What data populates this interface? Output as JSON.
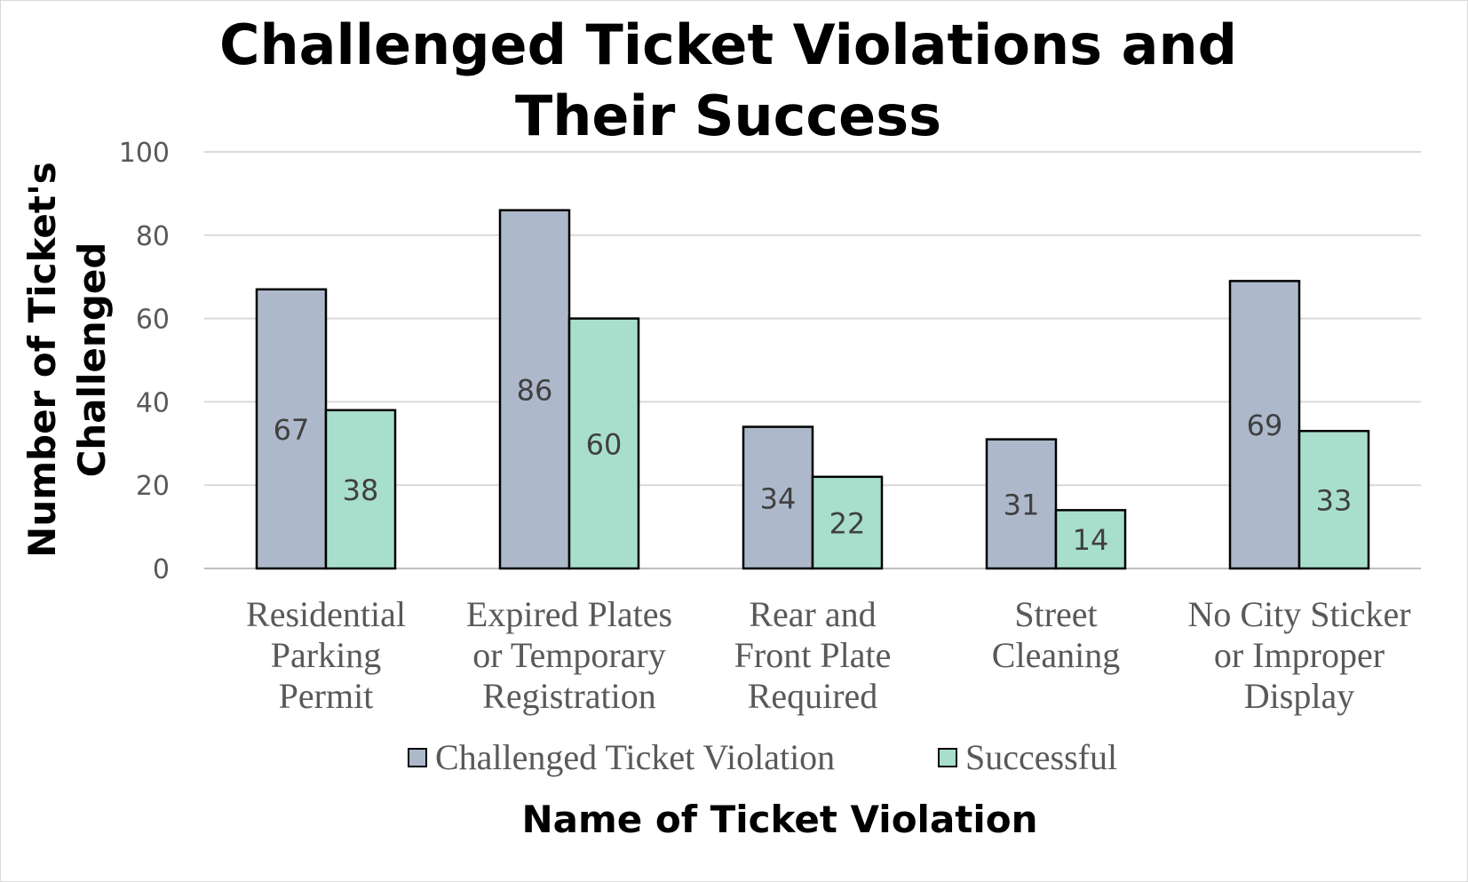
{
  "chart_data": {
    "type": "bar",
    "title": "Challenged Ticket Violations and Their Success",
    "title_lines": [
      "Challenged Ticket Violations and",
      "Their Success"
    ],
    "xlabel": "Name of Ticket Violation",
    "ylabel": "Number of Ticket's Challenged",
    "ylabel_lines": [
      "Number of Ticket's",
      "Challenged"
    ],
    "ylim": [
      0,
      100
    ],
    "yticks": [
      0,
      20,
      40,
      60,
      80,
      100
    ],
    "grid": true,
    "legend_position": "bottom",
    "categories": [
      "Residential Parking Permit",
      "Expired Plates or Temporary Registration",
      "Rear and Front Plate Required",
      "Street Cleaning",
      "No City Sticker or Improper Display"
    ],
    "category_lines": [
      [
        "Residential",
        "Parking",
        "Permit"
      ],
      [
        "Expired Plates",
        "or Temporary",
        "Registration"
      ],
      [
        "Rear and",
        "Front Plate",
        "Required"
      ],
      [
        "Street",
        "Cleaning"
      ],
      [
        "No City Sticker",
        "or Improper",
        "Display"
      ]
    ],
    "series": [
      {
        "name": "Challenged Ticket Violation",
        "color": "#adb9ca",
        "values": [
          67,
          86,
          34,
          31,
          69
        ]
      },
      {
        "name": "Successful",
        "color": "#a8dfcc",
        "values": [
          38,
          60,
          22,
          14,
          33
        ]
      }
    ]
  }
}
